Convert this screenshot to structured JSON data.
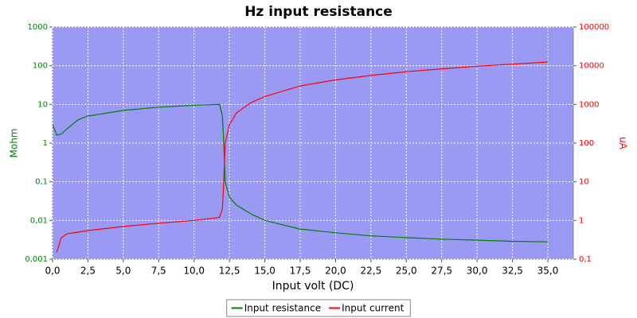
{
  "chart_data": {
    "type": "line",
    "title": "Hz input resistance",
    "x_label": "Input volt (DC)",
    "y_label": "Mohm",
    "y2_label": "uA",
    "x": [
      0,
      0.3,
      0.6,
      1,
      1.8,
      2.5,
      5,
      7.5,
      10,
      11.8,
      12,
      12.1,
      12.2,
      12.5,
      13,
      14,
      15,
      17.5,
      20,
      22.5,
      25,
      27.5,
      30,
      32.5,
      35
    ],
    "series": [
      {
        "name": "Input resistance",
        "color": "#007f00",
        "axis": "y",
        "values": [
          3,
          1.6,
          1.7,
          2.3,
          4,
          5,
          7,
          8.5,
          9.5,
          10,
          5,
          1,
          0.1,
          0.04,
          0.025,
          0.015,
          0.01,
          0.006,
          0.0048,
          0.004,
          0.0036,
          0.0033,
          0.0031,
          0.0029,
          0.0028
        ]
      },
      {
        "name": "Input current",
        "color": "#ff0000",
        "axis": "y2",
        "values": [
          null,
          0.15,
          0.35,
          0.45,
          0.5,
          0.55,
          0.7,
          0.85,
          1.0,
          1.2,
          2,
          10,
          100,
          300,
          600,
          1100,
          1600,
          3000,
          4300,
          5600,
          7000,
          8300,
          9700,
          11000,
          12500
        ]
      }
    ],
    "xlim": [
      0,
      36.8
    ],
    "xticks": [
      {
        "value": 0,
        "label": "0,0"
      },
      {
        "value": 2.5,
        "label": "2,5"
      },
      {
        "value": 5,
        "label": "5,0"
      },
      {
        "value": 7.5,
        "label": "7,5"
      },
      {
        "value": 10,
        "label": "10,0"
      },
      {
        "value": 12.5,
        "label": "12,5"
      },
      {
        "value": 15,
        "label": "15,0"
      },
      {
        "value": 17.5,
        "label": "17,5"
      },
      {
        "value": 20,
        "label": "20,0"
      },
      {
        "value": 22.5,
        "label": "22,5"
      },
      {
        "value": 25,
        "label": "25,0"
      },
      {
        "value": 27.5,
        "label": "27,5"
      },
      {
        "value": 30,
        "label": "30,0"
      },
      {
        "value": 32.5,
        "label": "32,5"
      },
      {
        "value": 35,
        "label": "35,0"
      }
    ],
    "ylim": [
      0.001,
      1000
    ],
    "yticks": [
      {
        "value": 0.001,
        "label": "0,001"
      },
      {
        "value": 0.01,
        "label": "0,01"
      },
      {
        "value": 0.1,
        "label": "0,1"
      },
      1,
      10,
      100,
      1000
    ],
    "y2lim": [
      0.1,
      100000
    ],
    "y2ticks": [
      {
        "value": 0.1,
        "label": "0,1"
      },
      1,
      10,
      100,
      1000,
      10000,
      100000
    ],
    "log_scale": true,
    "y2_log_scale": true,
    "grid": true,
    "plot_color": "#9a9af5",
    "legend": "bottom"
  }
}
